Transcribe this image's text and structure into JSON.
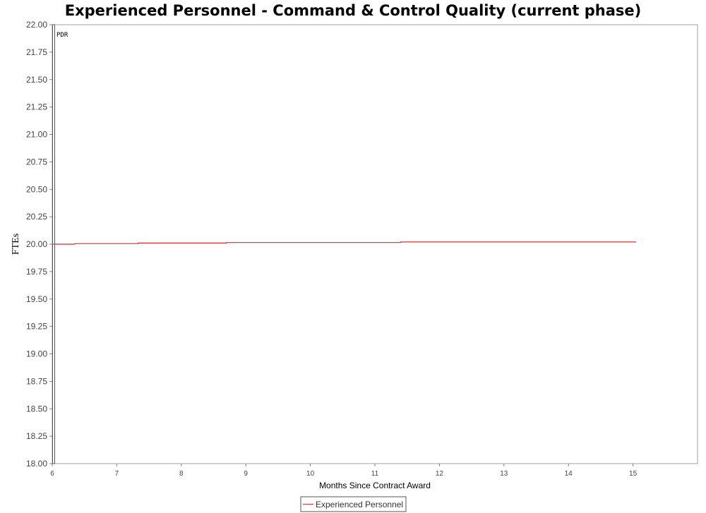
{
  "chart_data": {
    "type": "line",
    "title": "Experienced Personnel - Command & Control Quality (current phase)",
    "xlabel": "Months Since Contract Award",
    "ylabel": "FTEs",
    "xlim": [
      6,
      16
    ],
    "ylim": [
      18.0,
      22.0
    ],
    "x_ticks": [
      6,
      7,
      8,
      9,
      10,
      11,
      12,
      13,
      14,
      15
    ],
    "x_tick_labels": [
      "6",
      "7",
      "8",
      "9",
      "10",
      "11",
      "12",
      "13",
      "14",
      "15"
    ],
    "y_ticks": [
      18.0,
      18.25,
      18.5,
      18.75,
      19.0,
      19.25,
      19.5,
      19.75,
      20.0,
      20.25,
      20.5,
      20.75,
      21.0,
      21.25,
      21.5,
      21.75,
      22.0
    ],
    "y_tick_labels": [
      "18.00",
      "18.25",
      "18.50",
      "18.75",
      "19.00",
      "19.25",
      "19.50",
      "19.75",
      "20.00",
      "20.25",
      "20.50",
      "20.75",
      "21.00",
      "21.25",
      "21.50",
      "21.75",
      "22.00"
    ],
    "grid": false,
    "legend_position": "bottom-center",
    "markers": [
      {
        "label": "PDR",
        "x": 6.0
      }
    ],
    "series": [
      {
        "name": "Experienced Personnel",
        "color": "#cc3333",
        "step": true,
        "x": [
          6.0,
          6.35,
          7.33,
          8.7,
          11.4,
          15.05
        ],
        "y": [
          20.0,
          20.005,
          20.01,
          20.015,
          20.02,
          20.02
        ]
      }
    ]
  }
}
